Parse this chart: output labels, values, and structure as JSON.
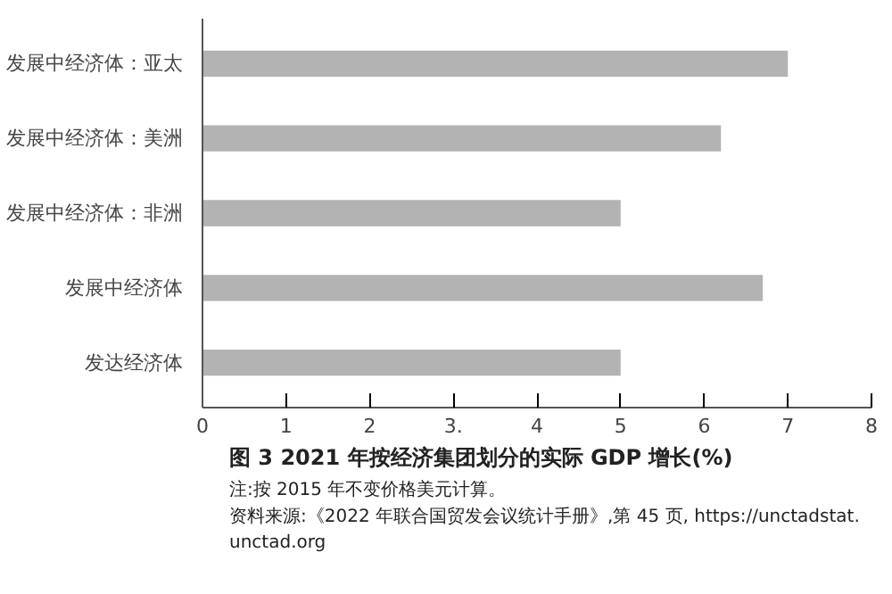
{
  "chart_data": {
    "type": "bar",
    "orientation": "horizontal",
    "title": "图 3            2021 年按经济集团划分的实际 GDP 增长(%)",
    "categories": [
      "发展中经济体：亚太",
      "发展中经济体：美洲",
      "发展中经济体：非洲",
      "发展中经济体",
      "发达经济体"
    ],
    "values": [
      7.0,
      6.2,
      5.0,
      6.7,
      5.0
    ],
    "color": "#b3b3b3",
    "xlim": [
      0,
      8
    ],
    "xticks": [
      0,
      1,
      2,
      {
        "value": 3,
        "label": "3."
      },
      4,
      5,
      6,
      7,
      8
    ],
    "grid": false,
    "annotations": [
      "注:按 2015 年不变价格美元计算。",
      "资料来源:《2022 年联合国贸发会议统计手册》,第 45 页, https://unctadstat.unctad.org"
    ]
  }
}
